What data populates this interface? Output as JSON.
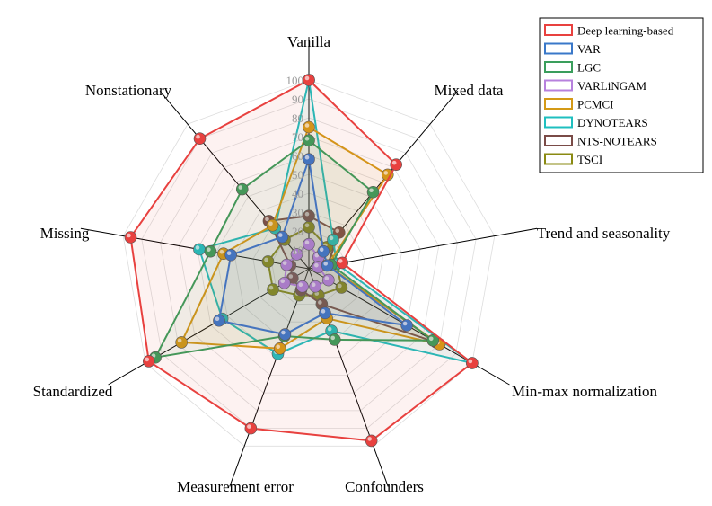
{
  "chart_data": {
    "type": "radar",
    "title": "",
    "axes": [
      "Vanilla",
      "Mixed data",
      "Trend and seasonality",
      "Min-max normalization",
      "Confounders",
      "Measurement error",
      "Standardized",
      "Missing",
      "Nonstationary"
    ],
    "radial_range": [
      0,
      100
    ],
    "ticks": [
      10,
      20,
      30,
      40,
      50,
      60,
      70,
      80,
      90,
      100
    ],
    "grid": true,
    "legend_position": "top-right",
    "series": [
      {
        "name": "Deep learning-based",
        "color": "#e8413f",
        "values": [
          100,
          72,
          18,
          100,
          97,
          90,
          98,
          96,
          90
        ]
      },
      {
        "name": "VAR",
        "color": "#3a78c9",
        "values": [
          58,
          12,
          10,
          60,
          25,
          37,
          55,
          42,
          22
        ]
      },
      {
        "name": "LGC",
        "color": "#3a9e5c",
        "values": [
          68,
          53,
          12,
          76,
          40,
          38,
          94,
          53,
          55
        ]
      },
      {
        "name": "VARLiNGAM",
        "color": "#b781dd",
        "values": [
          13,
          8,
          5,
          12,
          10,
          10,
          15,
          12,
          10
        ]
      },
      {
        "name": "PCMCI",
        "color": "#d49a17",
        "values": [
          75,
          65,
          10,
          80,
          28,
          45,
          78,
          46,
          30
        ]
      },
      {
        "name": "DYNOTEARS",
        "color": "#1fbfbf",
        "values": [
          100,
          20,
          15,
          100,
          35,
          48,
          53,
          59,
          28
        ]
      },
      {
        "name": "NTS-NOTEARS",
        "color": "#7a4b47",
        "values": [
          28,
          25,
          10,
          78,
          20,
          12,
          10,
          10,
          33
        ]
      },
      {
        "name": "TSCI",
        "color": "#8a8a12",
        "values": [
          22,
          15,
          15,
          20,
          15,
          15,
          22,
          22,
          20
        ]
      }
    ]
  }
}
